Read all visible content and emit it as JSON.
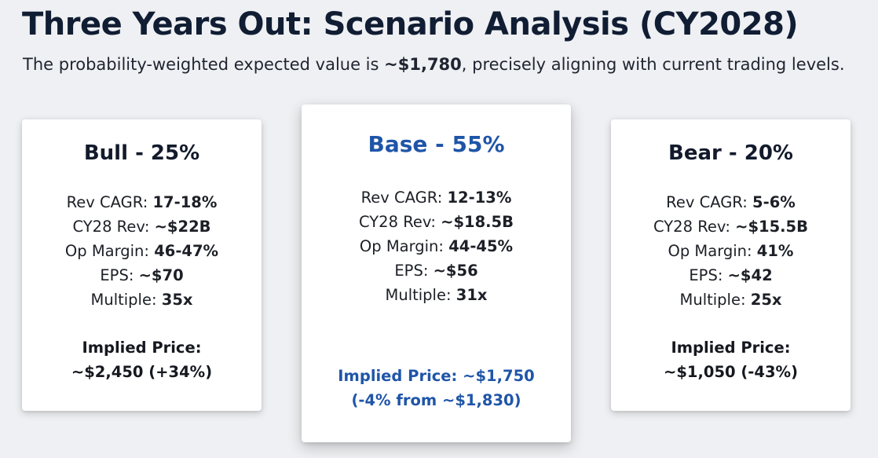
{
  "header": {
    "title": "Three Years Out: Scenario Analysis (CY2028)",
    "subtitle_pre": "The probability-weighted expected value is ",
    "subtitle_strong": "~$1,780",
    "subtitle_post": ", precisely aligning with current trading levels."
  },
  "colors": {
    "accent": "#1f55a8",
    "title": "#101d33",
    "background": "#eef0f3"
  },
  "scenarios": [
    {
      "title": "Bull - 25%",
      "metrics": [
        {
          "label": "Rev CAGR: ",
          "value": "17-18%"
        },
        {
          "label": "CY28 Rev: ",
          "value": "~$22B"
        },
        {
          "label": "Op Margin: ",
          "value": "46-47%"
        },
        {
          "label": "EPS: ",
          "value": "~$70"
        },
        {
          "label": "Multiple: ",
          "value": "35x"
        }
      ],
      "implied_line1": "Implied Price:",
      "implied_line2": "~$2,450 (+34%)"
    },
    {
      "title": "Base - 55%",
      "metrics": [
        {
          "label": "Rev CAGR: ",
          "value": "12-13%"
        },
        {
          "label": "CY28 Rev: ",
          "value": "~$18.5B"
        },
        {
          "label": "Op Margin: ",
          "value": "44-45%"
        },
        {
          "label": "EPS: ",
          "value": "~$56"
        },
        {
          "label": "Multiple: ",
          "value": "31x"
        }
      ],
      "implied_line1": "Implied Price: ~$1,750",
      "implied_line2": "(-4% from ~$1,830)"
    },
    {
      "title": "Bear - 20%",
      "metrics": [
        {
          "label": "Rev CAGR: ",
          "value": "5-6%"
        },
        {
          "label": "CY28 Rev: ",
          "value": "~$15.5B"
        },
        {
          "label": "Op Margin: ",
          "value": "41%"
        },
        {
          "label": "EPS: ",
          "value": "~$42"
        },
        {
          "label": "Multiple: ",
          "value": "25x"
        }
      ],
      "implied_line1": "Implied Price:",
      "implied_line2": "~$1,050 (-43%)"
    }
  ]
}
